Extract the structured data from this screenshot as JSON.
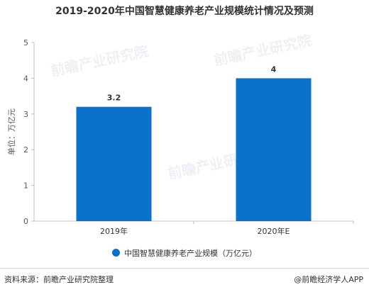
{
  "title": "2019-2020年中国智慧健康养老产业规模统计情况及预测",
  "chart_data": {
    "type": "bar",
    "categories": [
      "2019年",
      "2020年E"
    ],
    "values": [
      3.2,
      4
    ],
    "data_labels": [
      "3.2",
      "4"
    ],
    "ylabel": "单位：万亿元",
    "ylim": [
      0,
      5
    ],
    "yticks": [
      "0",
      "1",
      "2",
      "3",
      "4",
      "5"
    ],
    "grid": false,
    "legend_position": "bottom",
    "series": [
      {
        "name": "中国智慧健康养老产业规模（万亿元）",
        "values": [
          3.2,
          4
        ]
      }
    ]
  },
  "colors": {
    "bar": "#0b72c9",
    "axis": "#bfbfbf"
  },
  "footer": {
    "source": "资料来源：前瞻产业研究院整理",
    "credit": "@前瞻经济学人APP"
  },
  "watermark": {
    "text": "前瞻产业研究院"
  }
}
